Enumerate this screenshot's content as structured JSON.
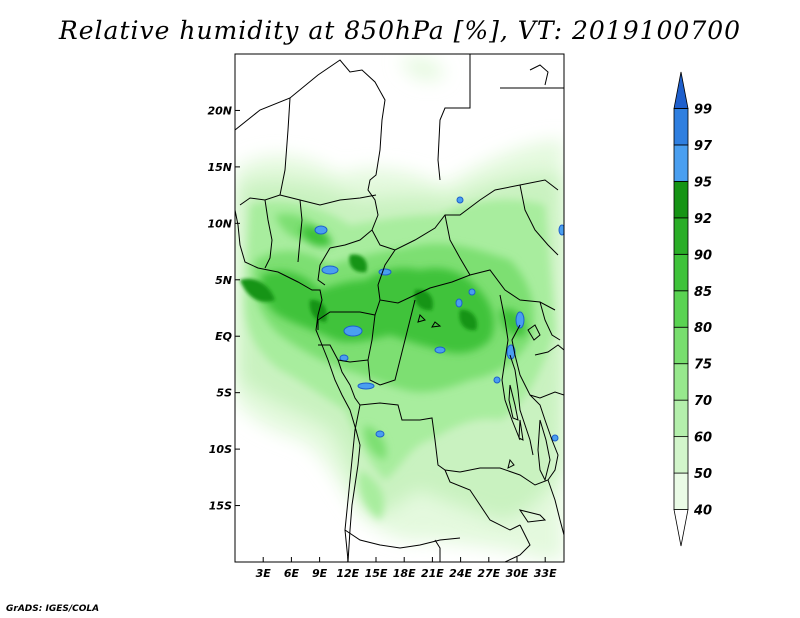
{
  "title": "Relative humidity at 850hPa [%], VT: 2019100700",
  "credit": "GrADS: IGES/COLA",
  "map": {
    "lon_range": [
      0,
      35
    ],
    "lat_range": [
      -20,
      25
    ],
    "lat_ticks": [
      {
        "value": 20,
        "label": "20N"
      },
      {
        "value": 15,
        "label": "15N"
      },
      {
        "value": 10,
        "label": "10N"
      },
      {
        "value": 5,
        "label": "5N"
      },
      {
        "value": 0,
        "label": "EQ"
      },
      {
        "value": -5,
        "label": "5S"
      },
      {
        "value": -10,
        "label": "10S"
      },
      {
        "value": -15,
        "label": "15S"
      }
    ],
    "lon_ticks": [
      {
        "value": 3,
        "label": "3E"
      },
      {
        "value": 6,
        "label": "6E"
      },
      {
        "value": 9,
        "label": "9E"
      },
      {
        "value": 12,
        "label": "12E"
      },
      {
        "value": 15,
        "label": "15E"
      },
      {
        "value": 18,
        "label": "18E"
      },
      {
        "value": 21,
        "label": "21E"
      },
      {
        "value": 24,
        "label": "24E"
      },
      {
        "value": 27,
        "label": "27E"
      },
      {
        "value": 30,
        "label": "30E"
      },
      {
        "value": 33,
        "label": "33E"
      }
    ]
  },
  "colorbar": {
    "levels": [
      "40",
      "50",
      "60",
      "70",
      "75",
      "80",
      "85",
      "90",
      "92",
      "95",
      "97",
      "99"
    ],
    "colors": [
      "#ffffff",
      "#eafbe6",
      "#d2f5cb",
      "#b4efac",
      "#97e88d",
      "#78de6e",
      "#5ad352",
      "#3fc33a",
      "#2aae27",
      "#169415",
      "#4a9ff0",
      "#2f7fe0",
      "#1e5fcc"
    ]
  }
}
